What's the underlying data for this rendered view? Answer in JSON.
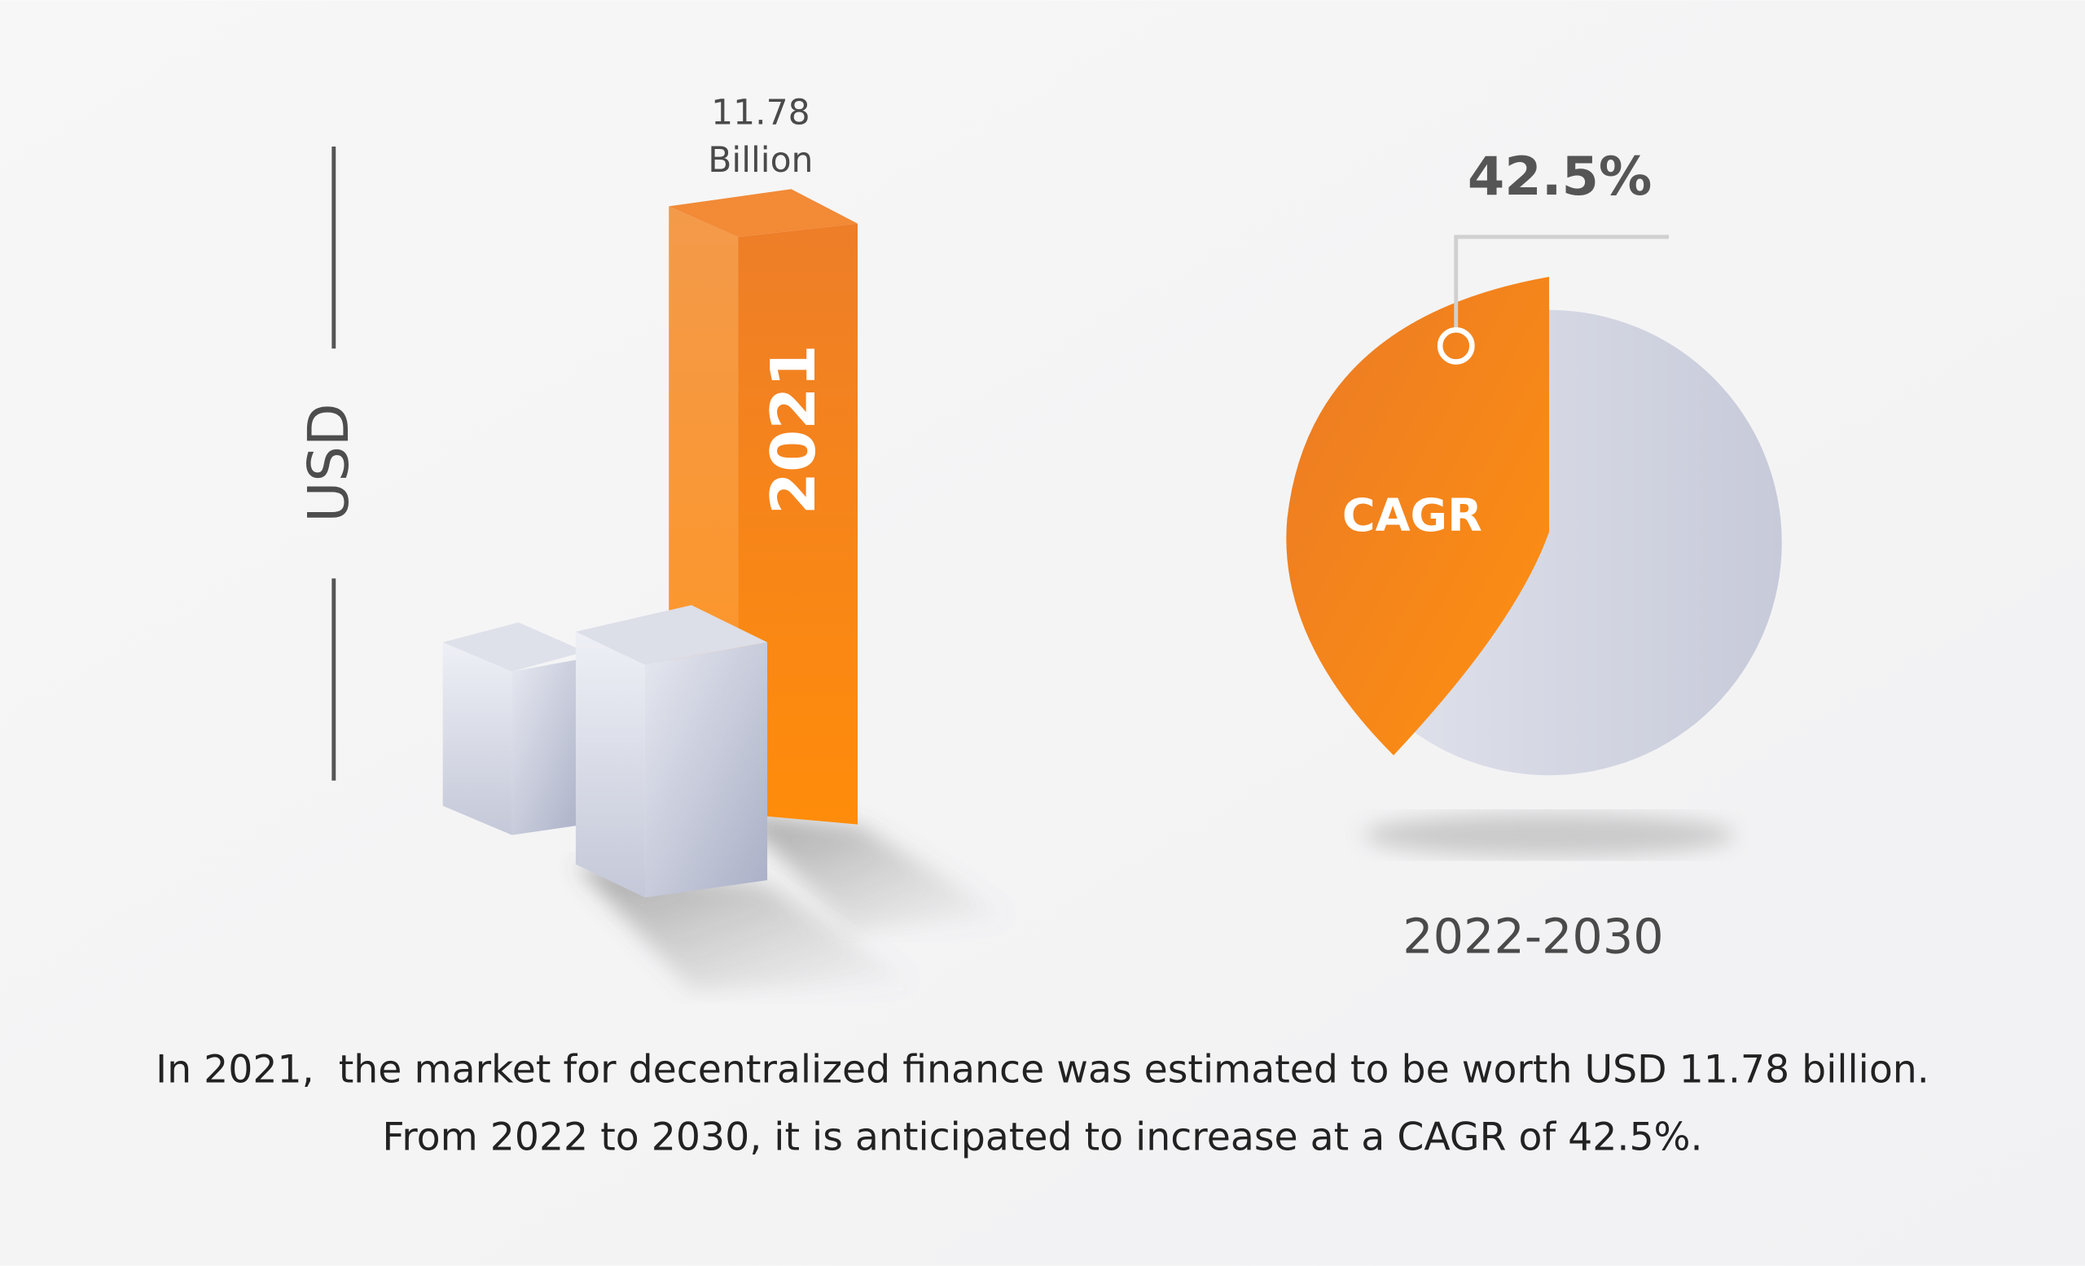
{
  "bar_chart": {
    "axis_label": "USD",
    "value_label": {
      "value": "11.78",
      "unit": "Billion"
    },
    "bar_label": "2021"
  },
  "pie_chart": {
    "value_label": "42.5%",
    "slice_label": "CAGR",
    "period": "2022-2030"
  },
  "caption": {
    "lines": [
      "In 2021,  the market for decentralized finance was estimated to be worth USD 11.78 billion.",
      "From 2022 to 2030, it is anticipated to increase at a CAGR of 42.5%."
    ]
  }
}
